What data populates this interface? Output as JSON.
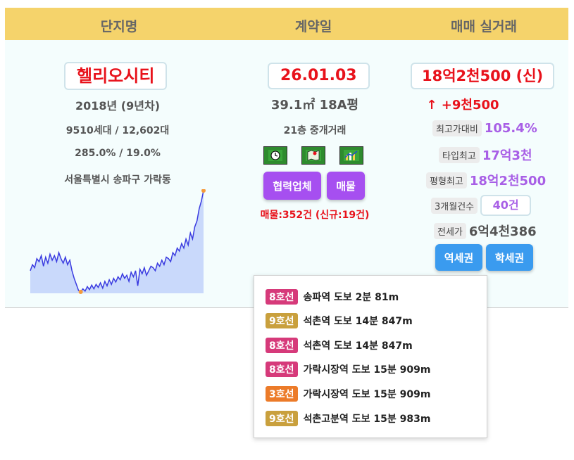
{
  "header": {
    "col1": "단지명",
    "col2": "계약일",
    "col3": "매매 실거래"
  },
  "complex": {
    "name": "헬리오시티",
    "year": "2018년 (9년차)",
    "units": "9510세대 / 12,602대",
    "ratio": "285.0% / 19.0%",
    "address": "서울특별시 송파구 가락동"
  },
  "contract": {
    "date": "26.01.03",
    "area": "39.1㎡ 18A평",
    "floor": "21층 중개거래",
    "icons": [
      "clock-icon",
      "map-icon",
      "chart-icon"
    ],
    "partner_label": "협력업체",
    "listing_label": "매물",
    "listing_count": "매물:352건 (신규:19건)"
  },
  "trade": {
    "price": "18억2천500 (신)",
    "change": "↑ +9천500",
    "max_ratio_label": "최고가대비",
    "max_ratio_value": "105.4%",
    "type_max_label": "타입최고",
    "type_max_value": "17억3천",
    "pyeong_max_label": "평형최고",
    "pyeong_max_value": "18억2천500",
    "count3m_label": "3개월건수",
    "count3m_value": "40건",
    "jeonse_label": "전세가",
    "jeonse_value": "6억4천386",
    "station_button": "역세권",
    "school_button": "학세권"
  },
  "colors": {
    "line8": "#d63a7a",
    "line9": "#c9a03d",
    "line3": "#ec7b29",
    "accent_purple": "#a64ff0",
    "accent_blue": "#3a9bef",
    "header_bg": "#f5d36b",
    "price_red": "#e8121b"
  },
  "stations": [
    {
      "line": "8호선",
      "line_color": "#d63a7a",
      "text": "송파역  도보 2분  81m"
    },
    {
      "line": "9호선",
      "line_color": "#c9a03d",
      "text": "석촌역  도보 14분  847m"
    },
    {
      "line": "8호선",
      "line_color": "#d63a7a",
      "text": "석촌역  도보 14분  847m"
    },
    {
      "line": "8호선",
      "line_color": "#d63a7a",
      "text": "가락시장역  도보 15분  909m"
    },
    {
      "line": "3호선",
      "line_color": "#ec7b29",
      "text": "가락시장역  도보 15분  909m"
    },
    {
      "line": "9호선",
      "line_color": "#c9a03d",
      "text": "석촌고분역  도보 15분  983m"
    }
  ],
  "chart_data": {
    "type": "area",
    "values": [
      30,
      38,
      34,
      46,
      42,
      50,
      36,
      48,
      40,
      52,
      44,
      50,
      42,
      54,
      46,
      40,
      48,
      38,
      44,
      30,
      20,
      12,
      4,
      2,
      6,
      3,
      9,
      5,
      11,
      6,
      12,
      8,
      14,
      7,
      16,
      10,
      18,
      12,
      20,
      15,
      22,
      18,
      26,
      20,
      24,
      16,
      28,
      22,
      30,
      10,
      32,
      26,
      34,
      24,
      30,
      36,
      34,
      30,
      40,
      36,
      44,
      38,
      48,
      46,
      42,
      54,
      50,
      60,
      56,
      66,
      60,
      72,
      64,
      80,
      72,
      88,
      96,
      112,
      122,
      136
    ],
    "xlabel": "",
    "ylabel": "",
    "grid": false,
    "series": [
      {
        "values_ref": "values"
      }
    ]
  }
}
